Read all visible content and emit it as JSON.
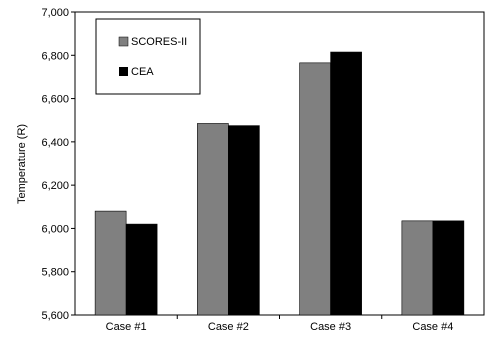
{
  "chart_data": {
    "type": "bar",
    "title": "",
    "xlabel": "",
    "ylabel": "Temperature (R)",
    "ylim": [
      5600,
      7000
    ],
    "yticks": [
      5600,
      5800,
      6000,
      6200,
      6400,
      6600,
      6800,
      7000
    ],
    "ytick_labels": [
      "5,600",
      "5,800",
      "6,000",
      "6,200",
      "6,400",
      "6,600",
      "6,800",
      "7,000"
    ],
    "categories": [
      "Case #1",
      "Case #2",
      "Case #3",
      "Case #4"
    ],
    "series": [
      {
        "name": "SCORES-II",
        "color": "#808080",
        "values": [
          6080,
          6485,
          6765,
          6035
        ]
      },
      {
        "name": "CEA",
        "color": "#000000",
        "values": [
          6020,
          6475,
          6815,
          6035
        ]
      }
    ],
    "grid": false,
    "legend": {
      "placement": "top-left",
      "boxed": true
    }
  }
}
